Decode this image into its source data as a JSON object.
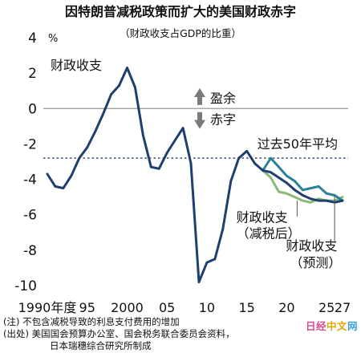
{
  "chart_data": {
    "type": "line",
    "title": "因特朗普减税政策而扩大的美国财政赤字",
    "subtitle": "（财政收支占GDP的比重）",
    "ylabel": "%",
    "ylim": [
      -10,
      4
    ],
    "yticks": [
      4,
      2,
      0,
      -2,
      -4,
      -6,
      -8,
      -10
    ],
    "xlim": [
      1989.5,
      2027.7
    ],
    "xtick_labels": [
      {
        "x": 1990,
        "label": "1990年度"
      },
      {
        "x": 1995,
        "label": "95"
      },
      {
        "x": 2000,
        "label": "2000"
      },
      {
        "x": 2005,
        "label": "05"
      },
      {
        "x": 2010,
        "label": "10"
      },
      {
        "x": 2015,
        "label": "15"
      },
      {
        "x": 2020,
        "label": "20"
      },
      {
        "x": 2025,
        "label": "25"
      },
      {
        "x": 2027,
        "label": "27"
      }
    ],
    "series": [
      {
        "name": "财政收支",
        "color": "#1f3f6e",
        "x": [
          1990,
          1991,
          1992,
          1993,
          1994,
          1995,
          1996,
          1997,
          1998,
          1999,
          2000,
          2001,
          2002,
          2003,
          2004,
          2005,
          2006,
          2007,
          2008,
          2009,
          2010,
          2011,
          2012,
          2013,
          2014,
          2015,
          2016,
          2017,
          2018,
          2019,
          2020,
          2021,
          2022,
          2023,
          2024,
          2025,
          2026,
          2027
        ],
        "values": [
          -3.7,
          -4.4,
          -4.5,
          -3.8,
          -2.8,
          -2.2,
          -1.3,
          -0.3,
          0.8,
          1.3,
          2.3,
          1.2,
          -1.5,
          -3.3,
          -3.4,
          -2.5,
          -1.8,
          -1.1,
          -3.1,
          -9.8,
          -8.7,
          -8.5,
          -6.8,
          -4.1,
          -2.8,
          -2.4,
          -3.1,
          -3.5,
          -3.6,
          -3.9,
          -4.2,
          -4.6,
          -4.9,
          -5.1,
          -5.2,
          -5.2,
          -5.3,
          -5.2
        ]
      },
      {
        "name": "财政收支（预测）",
        "color": "#2e7f99",
        "x": [
          2017,
          2018,
          2019,
          2020,
          2021,
          2022,
          2023,
          2024,
          2025,
          2026,
          2027
        ],
        "values": [
          -3.5,
          -2.8,
          -3.3,
          -3.8,
          -4.1,
          -4.6,
          -4.5,
          -4.4,
          -4.8,
          -4.9,
          -5.2
        ]
      },
      {
        "name": "财政收支（减税后）",
        "color": "#8db87a",
        "x": [
          2017,
          2018,
          2019,
          2020,
          2021,
          2022,
          2023,
          2024,
          2025,
          2026,
          2027
        ],
        "values": [
          -3.5,
          -3.9,
          -4.7,
          -4.8,
          -5.0,
          -5.2,
          -5.3,
          -5.1,
          -5.2,
          -5.2,
          -5.0
        ]
      }
    ],
    "reference_line": {
      "label": "过去50年平均",
      "value": -2.8,
      "style": "dotted",
      "color": "#1f3f6e"
    },
    "annotations": {
      "balance_label": "财政收支",
      "surplus_label": "盈余",
      "deficit_label": "赤字",
      "cut_label": [
        "财政收支",
        "（减税后）"
      ],
      "forecast_label": [
        "财政收支",
        "（预测）"
      ]
    },
    "legend": "none",
    "grid": false
  },
  "notes": {
    "note1": "(注) 不包含减税导致的利息支付费用的增加",
    "source1": "(出处) 美国国会预算办公室、国会税务联合委员会资料，",
    "source2": "日本瑞穗综合研究所制成"
  },
  "watermark": {
    "part_a": "日经",
    "part_b": "中文",
    "part_c": "网"
  },
  "colors": {
    "balance": "#1f3f6e",
    "forecast": "#2e7f99",
    "after_cut": "#8db87a",
    "zero_line": "#999999",
    "arrow": "#7a7a7a"
  }
}
